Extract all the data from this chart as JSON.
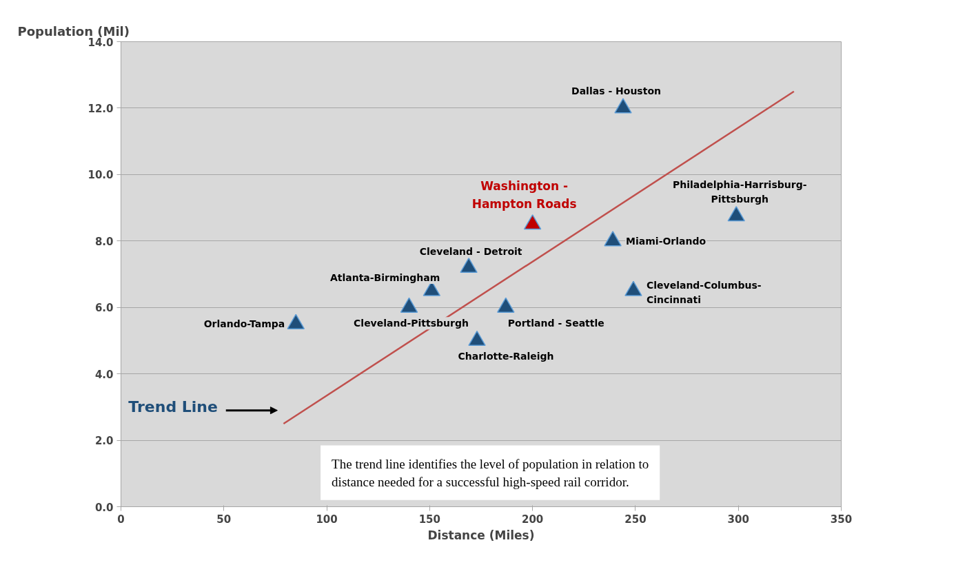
{
  "chart_data": {
    "type": "scatter",
    "xlabel": "Distance (Miles)",
    "ylabel": "Population (Mil)",
    "xlim": [
      0,
      350
    ],
    "xticks": [
      0,
      50,
      100,
      150,
      200,
      250,
      300,
      350
    ],
    "ylim": [
      0,
      14
    ],
    "yticks": [
      {
        "value": 0,
        "label": "0.0"
      },
      {
        "value": 2,
        "label": "2.0"
      },
      {
        "value": 4,
        "label": "4.0"
      },
      {
        "value": 6,
        "label": "6.0"
      },
      {
        "value": 8,
        "label": "8.0"
      },
      {
        "value": 10,
        "label": "10.0"
      },
      {
        "value": 12,
        "label": "12.0"
      },
      {
        "value": 14,
        "label": "14.0"
      }
    ],
    "grid": "y",
    "legend": false,
    "marker": "triangle",
    "series": [
      {
        "color": "#1f4e79",
        "x": [
          85,
          140,
          151,
          169,
          173,
          187,
          244,
          239,
          249,
          299
        ],
        "values": [
          5.5,
          6.0,
          6.5,
          7.2,
          5.0,
          6.0,
          12.0,
          8.0,
          6.5,
          8.75
        ]
      },
      {
        "type": "scatter",
        "name": "Washington -\nHampton Roads",
        "color": "#c00000",
        "x": [
          200
        ],
        "values": [
          8.5
        ]
      },
      {
        "type": "line",
        "name": "Trend Line",
        "color": "#c0504d",
        "marker": "none",
        "x": [
          79,
          327
        ],
        "values": [
          2.5,
          12.5
        ]
      }
    ],
    "annotations": [
      {
        "text": "Orlando-Tampa",
        "x": 85,
        "y": 5.5
      },
      {
        "text": "Cleveland-Pittsburgh",
        "x": 140,
        "y": 6.0
      },
      {
        "text": "Atlanta-Birmingham",
        "x": 151,
        "y": 6.5
      },
      {
        "text": "Cleveland - Detroit",
        "x": 169,
        "y": 7.2
      },
      {
        "text": "Charlotte-Raleigh",
        "x": 173,
        "y": 5.0
      },
      {
        "text": "Portland - Seattle",
        "x": 187,
        "y": 6.0
      },
      {
        "text": "Dallas - Houston",
        "x": 244,
        "y": 12.0
      },
      {
        "text": "Miami-Orlando",
        "x": 239,
        "y": 8.0
      },
      {
        "text": "Cleveland-Columbus-\nCincinnati",
        "x": 249,
        "y": 6.5
      },
      {
        "text": "Philadelphia-Harrisburg-\nPittsburgh",
        "x": 299,
        "y": 8.75
      },
      "The trend line identifies the level of population in relation to\ndistance needed for a successful high-speed rail corridor."
    ]
  }
}
